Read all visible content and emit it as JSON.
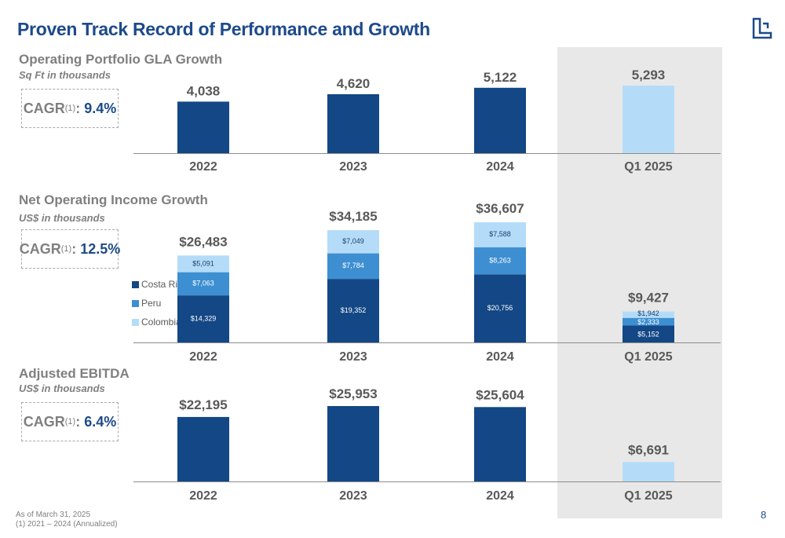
{
  "title": "Proven Track Record of Performance and Growth",
  "logo_icon": "building-logo-icon",
  "page_number": "8",
  "footnotes": [
    "As of March 31, 2025",
    "(1) 2021 – 2024 (Annualized)"
  ],
  "colors": {
    "dark_blue": "#134785",
    "mid_blue": "#3d8fd1",
    "light_blue": "#b4dcf8",
    "highlight_bg": "#e8e8e8",
    "gray_text": "#7f7f7f"
  },
  "sections": {
    "gla": {
      "title": "Operating Portfolio GLA Growth",
      "subtitle": "Sq Ft in thousands",
      "cagr_label": "CAGR",
      "cagr_sup": "(1)",
      "cagr_value": "9.4%"
    },
    "noi": {
      "title": "Net Operating Income Growth",
      "subtitle": "US$ in thousands",
      "cagr_label": "CAGR",
      "cagr_sup": "(1)",
      "cagr_value": "12.5%"
    },
    "ebitda": {
      "title": "Adjusted EBITDA",
      "subtitle": "US$ in thousands",
      "cagr_label": "CAGR",
      "cagr_sup": "(1)",
      "cagr_value": "6.4%"
    }
  },
  "legend": [
    {
      "label": "Costa Rica",
      "color": "#134785"
    },
    {
      "label": "Peru",
      "color": "#3d8fd1"
    },
    {
      "label": "Colombia",
      "color": "#b4dcf8"
    }
  ],
  "chart_data": [
    {
      "type": "bar",
      "title": "Operating Portfolio GLA Growth",
      "categories": [
        "2022",
        "2023",
        "2024",
        "Q1 2025"
      ],
      "values": [
        4038,
        4620,
        5122,
        5293
      ],
      "labels": [
        "4,038",
        "4,620",
        "5,122",
        "5,293"
      ],
      "highlight_last": true
    },
    {
      "type": "bar",
      "stacked": true,
      "title": "Net Operating Income Growth",
      "categories": [
        "2022",
        "2023",
        "2024",
        "Q1 2025"
      ],
      "totals": [
        26483,
        34185,
        36607,
        9427
      ],
      "total_labels": [
        "$26,483",
        "$34,185",
        "$36,607",
        "$9,427"
      ],
      "series": [
        {
          "name": "Costa Rica",
          "values": [
            14329,
            19352,
            20756,
            5152
          ],
          "labels": [
            "$14,329",
            "$19,352",
            "$20,756",
            "$5,152"
          ]
        },
        {
          "name": "Peru",
          "values": [
            7063,
            7784,
            8263,
            2333
          ],
          "labels": [
            "$7,063",
            "$7,784",
            "$8,263",
            "$2,333"
          ]
        },
        {
          "name": "Colombia",
          "values": [
            5091,
            7049,
            7588,
            1942
          ],
          "labels": [
            "$5,091",
            "$7,049",
            "$7,588",
            "$1,942"
          ]
        }
      ]
    },
    {
      "type": "bar",
      "title": "Adjusted EBITDA",
      "categories": [
        "2022",
        "2023",
        "2024",
        "Q1 2025"
      ],
      "values": [
        22195,
        25953,
        25604,
        6691
      ],
      "labels": [
        "$22,195",
        "$25,953",
        "$25,604",
        "$6,691"
      ],
      "highlight_last": true
    }
  ]
}
